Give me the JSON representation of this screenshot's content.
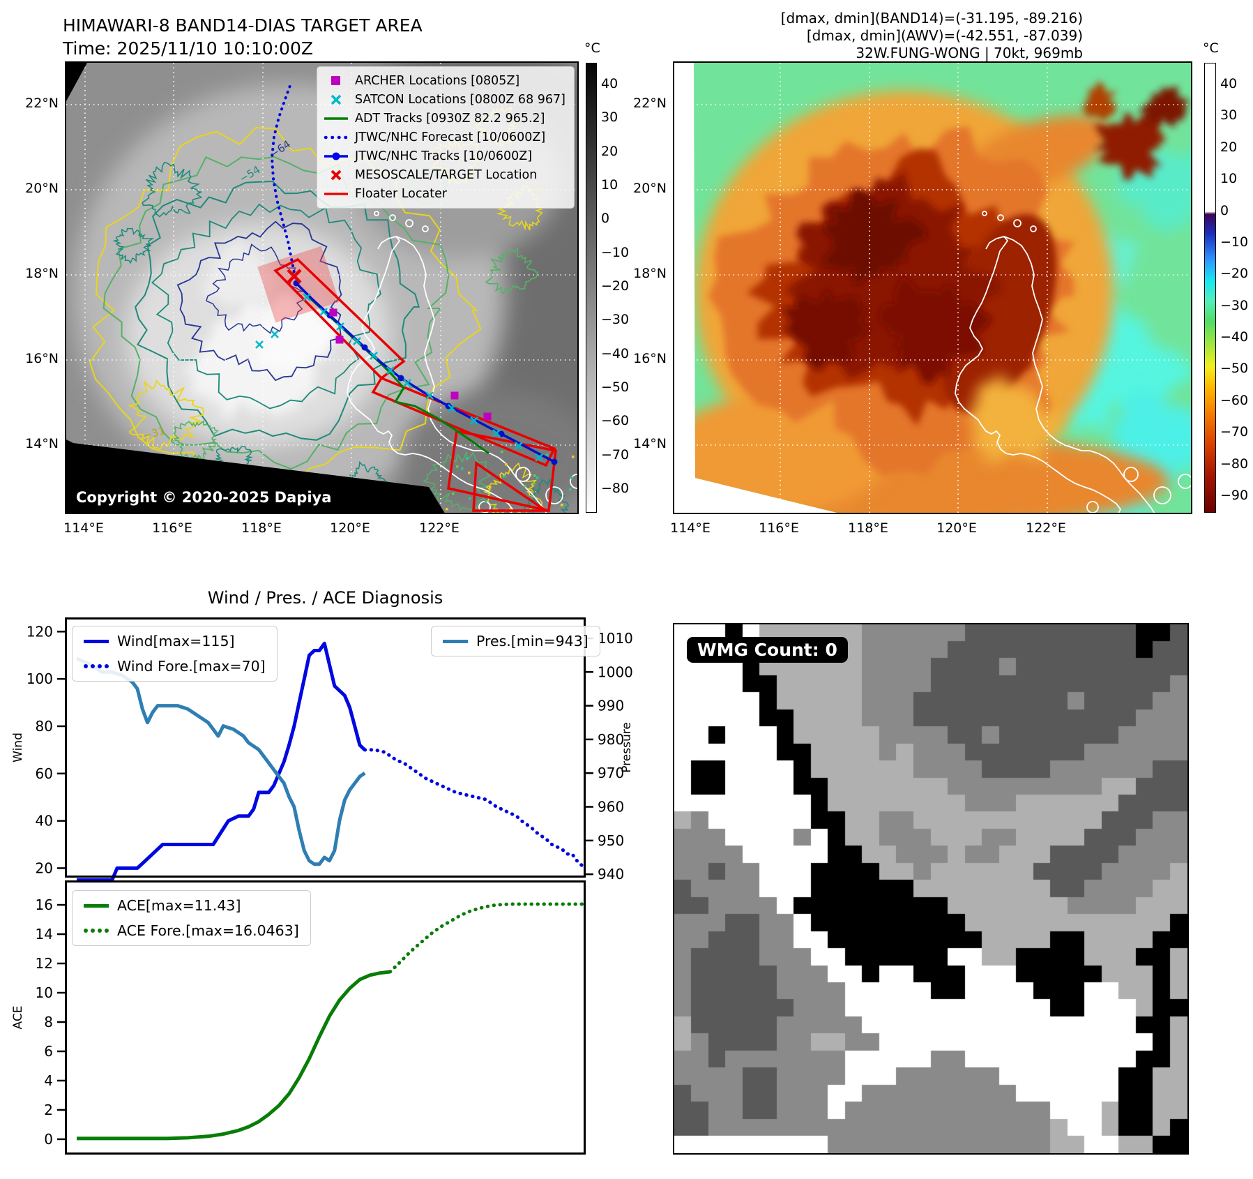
{
  "header_left": {
    "title": "HIMAWARI-8 BAND14-DIAS TARGET AREA",
    "time": "Time: 2025/11/10 10:10:00Z"
  },
  "header_right": {
    "line1": "[dmax, dmin](BAND14)=(-31.195, -89.216)",
    "line2": "[dmax, dmin](AWV)=(-42.551, -87.039)",
    "line3": "32W.FUNG-WONG | 70kt, 969mb"
  },
  "left_map": {
    "legend": [
      {
        "label": "ARCHER Locations [0805Z]",
        "marker": "square",
        "color": "#bf00bf"
      },
      {
        "label": "SATCON Locations [0800Z 68 967]",
        "marker": "xcyan",
        "color": "#00b8c8"
      },
      {
        "label": "ADT Tracks [0930Z 82.2 965.2]",
        "marker": "gline",
        "color": "#007d00"
      },
      {
        "label": "JTWC/NHC Forecast [10/0600Z]",
        "marker": "bdots",
        "color": "#0000ee"
      },
      {
        "label": "JTWC/NHC Tracks [10/0600Z]",
        "marker": "bline",
        "color": "#0000ee"
      },
      {
        "label": "MESOSCALE/TARGET Location",
        "marker": "xred",
        "color": "#e80000"
      },
      {
        "label": "Floater Locater",
        "marker": "rline",
        "color": "#e80000"
      }
    ],
    "copyright": "Copyright © 2020-2025 Dapiya",
    "contour_labels": [
      "-64",
      "-54",
      "-31",
      "-31"
    ],
    "x_ticks": [
      "114°E",
      "116°E",
      "118°E",
      "120°E",
      "122°E"
    ],
    "y_ticks": [
      "22°N",
      "20°N",
      "18°N",
      "16°N",
      "14°N"
    ],
    "colorbar": {
      "unit": "°C",
      "ticks": [
        40,
        30,
        20,
        10,
        0,
        -10,
        -20,
        -30,
        -40,
        -50,
        -60,
        -70,
        -80
      ]
    }
  },
  "right_map": {
    "x_ticks": [
      "114°E",
      "116°E",
      "118°E",
      "120°E",
      "122°E"
    ],
    "y_ticks": [
      "22°N",
      "20°N",
      "18°N",
      "16°N",
      "14°N"
    ],
    "colorbar": {
      "unit": "°C",
      "ticks": [
        40,
        30,
        20,
        10,
        0,
        -10,
        -20,
        -30,
        -40,
        -50,
        -60,
        -70,
        -80,
        -90
      ]
    }
  },
  "charts_title": "Wind / Pres. / ACE Diagnosis",
  "chart_data": [
    {
      "type": "line",
      "title": "Wind / Pres. / ACE Diagnosis",
      "xlabel": "",
      "ylabel_left": "Wind",
      "ylabel_right": "Pressure",
      "x_range": [
        0,
        100
      ],
      "left_ticks": [
        20,
        40,
        60,
        80,
        100,
        120
      ],
      "left_range": [
        16,
        126
      ],
      "right_ticks": [
        940,
        950,
        960,
        970,
        980,
        990,
        1000,
        1010
      ],
      "right_range": [
        939,
        1016.2
      ],
      "grid": false,
      "legend_position": "top-left and top-right",
      "series": [
        {
          "name": "Wind[max=115]",
          "axis": "left",
          "style": "solid",
          "color": "#0008e0",
          "width": 5,
          "points": [
            [
              0,
              15
            ],
            [
              7,
              15
            ],
            [
              8,
              20
            ],
            [
              12,
              20
            ],
            [
              13,
              22
            ],
            [
              17,
              30
            ],
            [
              27,
              30
            ],
            [
              30,
              40
            ],
            [
              32,
              42
            ],
            [
              34,
              42
            ],
            [
              35,
              45
            ],
            [
              36,
              52
            ],
            [
              38,
              52
            ],
            [
              39,
              55
            ],
            [
              41,
              65
            ],
            [
              42,
              72
            ],
            [
              43,
              80
            ],
            [
              44,
              90
            ],
            [
              45,
              100
            ],
            [
              46,
              110
            ],
            [
              47,
              112
            ],
            [
              48,
              112
            ],
            [
              49,
              115
            ],
            [
              50,
              106
            ],
            [
              51,
              97
            ],
            [
              52,
              95
            ],
            [
              53,
              93
            ],
            [
              54,
              88
            ],
            [
              55,
              80
            ],
            [
              56,
              72
            ],
            [
              57,
              70
            ]
          ]
        },
        {
          "name": "Wind Fore.[max=70]",
          "axis": "left",
          "style": "dotted",
          "color": "#0008e0",
          "width": 5,
          "points": [
            [
              57,
              70
            ],
            [
              59,
              70
            ],
            [
              61,
              69
            ],
            [
              63,
              66
            ],
            [
              65,
              64
            ],
            [
              67,
              61
            ],
            [
              69,
              58
            ],
            [
              71,
              56
            ],
            [
              73,
              54
            ],
            [
              75,
              52
            ],
            [
              77,
              51
            ],
            [
              79,
              50
            ],
            [
              81,
              49
            ],
            [
              83,
              46
            ],
            [
              85,
              44
            ],
            [
              87,
              42
            ],
            [
              88,
              40
            ],
            [
              90,
              37
            ],
            [
              91,
              35
            ],
            [
              93,
              32
            ],
            [
              94,
              30
            ],
            [
              95,
              29
            ],
            [
              96,
              28
            ],
            [
              97,
              26
            ],
            [
              98,
              26
            ],
            [
              99,
              23
            ],
            [
              100,
              21
            ]
          ]
        },
        {
          "name": "Pres.[min=943]",
          "axis": "right",
          "style": "solid",
          "color": "#2e7eb3",
          "width": 5,
          "points": [
            [
              0,
              1004
            ],
            [
              3,
              1002
            ],
            [
              5,
              1000
            ],
            [
              7,
              1000
            ],
            [
              9,
              999
            ],
            [
              11,
              997
            ],
            [
              12,
              995
            ],
            [
              13,
              989
            ],
            [
              14,
              985
            ],
            [
              15,
              988
            ],
            [
              16,
              990
            ],
            [
              18,
              990
            ],
            [
              20,
              990
            ],
            [
              22,
              989
            ],
            [
              24,
              987
            ],
            [
              26,
              985
            ],
            [
              27,
              983
            ],
            [
              28,
              981
            ],
            [
              29,
              984
            ],
            [
              31,
              983
            ],
            [
              33,
              981
            ],
            [
              34,
              979
            ],
            [
              36,
              977
            ],
            [
              38,
              973
            ],
            [
              40,
              969
            ],
            [
              41,
              967
            ],
            [
              42,
              963
            ],
            [
              43,
              960
            ],
            [
              44,
              953
            ],
            [
              45,
              947
            ],
            [
              46,
              944
            ],
            [
              47,
              943
            ],
            [
              48,
              943
            ],
            [
              49,
              945
            ],
            [
              50,
              944
            ],
            [
              51,
              947
            ],
            [
              52,
              956
            ],
            [
              53,
              962
            ],
            [
              54,
              965
            ],
            [
              55,
              967
            ],
            [
              56,
              969
            ],
            [
              57,
              970
            ]
          ]
        }
      ]
    },
    {
      "type": "line",
      "xlabel": "",
      "ylabel_left": "ACE",
      "x_range": [
        0,
        100
      ],
      "left_ticks": [
        0,
        2,
        4,
        6,
        8,
        10,
        12,
        14,
        16
      ],
      "left_range": [
        -1.05,
        17.67
      ],
      "grid": false,
      "legend_position": "top-left",
      "series": [
        {
          "name": "ACE[max=11.43]",
          "axis": "left",
          "style": "solid",
          "color": "#087d08",
          "width": 5,
          "points": [
            [
              0,
              0.05
            ],
            [
              10,
              0.05
            ],
            [
              18,
              0.05
            ],
            [
              22,
              0.1
            ],
            [
              26,
              0.2
            ],
            [
              29,
              0.35
            ],
            [
              32,
              0.6
            ],
            [
              34,
              0.85
            ],
            [
              36,
              1.2
            ],
            [
              38,
              1.7
            ],
            [
              40,
              2.3
            ],
            [
              42,
              3.1
            ],
            [
              44,
              4.2
            ],
            [
              46,
              5.5
            ],
            [
              48,
              7
            ],
            [
              50,
              8.4
            ],
            [
              52,
              9.5
            ],
            [
              54,
              10.3
            ],
            [
              56,
              10.9
            ],
            [
              58,
              11.2
            ],
            [
              60,
              11.35
            ],
            [
              62,
              11.43
            ]
          ]
        },
        {
          "name": "ACE Fore.[max=16.0463]",
          "axis": "left",
          "style": "dotted",
          "color": "#087d08",
          "width": 5,
          "points": [
            [
              62,
              11.43
            ],
            [
              64,
              12.1
            ],
            [
              66,
              12.8
            ],
            [
              68,
              13.4
            ],
            [
              70,
              14
            ],
            [
              72,
              14.5
            ],
            [
              74,
              14.9
            ],
            [
              76,
              15.3
            ],
            [
              78,
              15.6
            ],
            [
              80,
              15.8
            ],
            [
              82,
              15.95
            ],
            [
              84,
              16.02
            ],
            [
              86,
              16.05
            ],
            [
              90,
              16.05
            ],
            [
              94,
              16.05
            ],
            [
              100,
              16.05
            ]
          ]
        }
      ]
    }
  ],
  "wmg": {
    "label": "WMG Count: 0",
    "palette": [
      "#000000",
      "#595959",
      "#8a8a8a",
      "#b0b0b0",
      "#ffffff"
    ],
    "grid": [
      "444043333332222221111111111001",
      "444003333332222211111111111011",
      "444403333332222111121111111111",
      "444400333332222111111111111112",
      "444440333332221111111112111122",
      "444440033332221111111111111222",
      "440444033333222211211111112222",
      "444444003333232221111111222222",
      "400444403333332222111122222211",
      "400444400333333322222222233111",
      "444444440333333332223333331111",
      "324444440033223333333333311122",
      "222444424033222333223333111222",
      "222244444003322232233311112222",
      "221224440000332333333111122223",
      "122224440000003333333311222233",
      "112222400000000033333332222333",
      "222112240000000003333333333330",
      "221112244000000000333300333300",
      "211112224400000044330000333003",
      "211111222440440004440000033303",
      "211111222244444004444000443303",
      "211111122244444444444400444300",
      "311111222224444444444444444003",
      "321111223322444444444444444403",
      "221222222244444224444444444003",
      "222211222244422222244444440033",
      "122211222442222222224444440033",
      "112211222422222222222244430033",
      "112222222222222222222234430030",
      "444444444222222222222233443300"
    ]
  }
}
